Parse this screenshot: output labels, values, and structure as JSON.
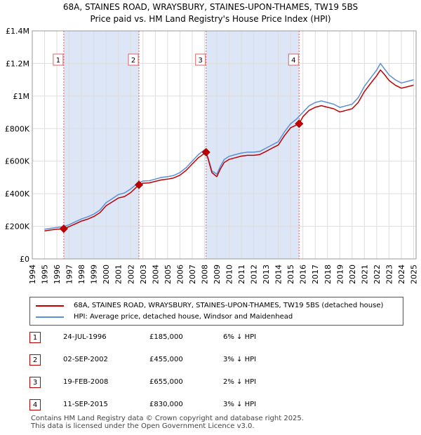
{
  "header": {
    "title": "68A, STAINES ROAD, WRAYSBURY, STAINES-UPON-THAMES, TW19 5BS",
    "subtitle": "Price paid vs. HM Land Registry's House Price Index (HPI)"
  },
  "colors": {
    "property": "#c00000",
    "hpi": "#5b8fd6",
    "shade": "#dce6f7",
    "vline": "#e06060",
    "grid": "#dddddd"
  },
  "chart_data": {
    "type": "line",
    "title": "68A, STAINES ROAD, WRAYSBURY, STAINES-UPON-THAMES, TW19 5BS",
    "subtitle": "Price paid vs. HM Land Registry's House Price Index (HPI)",
    "xlabel": "",
    "ylabel": "",
    "xlim": [
      1994,
      2025.2
    ],
    "ylim": [
      0,
      1400000
    ],
    "x_ticks": [
      1994,
      1995,
      1996,
      1997,
      1998,
      1999,
      2000,
      2001,
      2002,
      2003,
      2004,
      2005,
      2006,
      2007,
      2008,
      2009,
      2010,
      2011,
      2012,
      2013,
      2014,
      2015,
      2016,
      2017,
      2018,
      2019,
      2020,
      2021,
      2022,
      2023,
      2024,
      2025
    ],
    "y_ticks": [
      {
        "value": 0,
        "label": "£0"
      },
      {
        "value": 200000,
        "label": "£200K"
      },
      {
        "value": 400000,
        "label": "£400K"
      },
      {
        "value": 600000,
        "label": "£600K"
      },
      {
        "value": 800000,
        "label": "£800K"
      },
      {
        "value": 1000000,
        "label": "£1M"
      },
      {
        "value": 1200000,
        "label": "£1.2M"
      },
      {
        "value": 1400000,
        "label": "£1.4M"
      }
    ],
    "grid": true,
    "series": [
      {
        "name": "HPI: Average price, detached house, Windsor and Maidenhead",
        "x": [
          1995.0,
          1995.5,
          1996.0,
          1996.5,
          1997.0,
          1997.5,
          1998.0,
          1998.5,
          1999.0,
          1999.5,
          2000.0,
          2000.5,
          2001.0,
          2001.5,
          2002.0,
          2002.5,
          2003.0,
          2003.5,
          2004.0,
          2004.5,
          2005.0,
          2005.5,
          2006.0,
          2006.5,
          2007.0,
          2007.5,
          2008.0,
          2008.3,
          2008.6,
          2009.0,
          2009.3,
          2009.6,
          2010.0,
          2010.5,
          2011.0,
          2011.5,
          2012.0,
          2012.5,
          2013.0,
          2013.5,
          2014.0,
          2014.5,
          2015.0,
          2015.5,
          2016.0,
          2016.5,
          2017.0,
          2017.5,
          2018.0,
          2018.5,
          2019.0,
          2019.5,
          2020.0,
          2020.5,
          2021.0,
          2021.5,
          2022.0,
          2022.3,
          2022.6,
          2023.0,
          2023.5,
          2024.0,
          2024.5,
          2025.0
        ],
        "values": [
          182000,
          188000,
          193000,
          197000,
          210000,
          228000,
          245000,
          258000,
          275000,
          300000,
          345000,
          370000,
          395000,
          405000,
          430000,
          460000,
          478000,
          480000,
          490000,
          500000,
          505000,
          512000,
          530000,
          560000,
          600000,
          640000,
          670000,
          620000,
          540000,
          520000,
          570000,
          610000,
          630000,
          640000,
          650000,
          655000,
          655000,
          660000,
          680000,
          700000,
          720000,
          780000,
          830000,
          860000,
          900000,
          940000,
          960000,
          970000,
          960000,
          950000,
          930000,
          940000,
          950000,
          990000,
          1060000,
          1110000,
          1160000,
          1200000,
          1170000,
          1130000,
          1100000,
          1080000,
          1090000,
          1100000
        ]
      },
      {
        "name": "68A, STAINES ROAD, WRAYSBURY, STAINES-UPON-THAMES, TW19 5BS (detached house)",
        "x": [
          1995.0,
          1995.5,
          1996.0,
          1996.56,
          1997.0,
          1997.5,
          1998.0,
          1998.5,
          1999.0,
          1999.5,
          2000.0,
          2000.5,
          2001.0,
          2001.5,
          2002.0,
          2002.67,
          2003.0,
          2003.5,
          2004.0,
          2004.5,
          2005.0,
          2005.5,
          2006.0,
          2006.5,
          2007.0,
          2007.5,
          2008.13,
          2008.3,
          2008.6,
          2009.0,
          2009.3,
          2009.6,
          2010.0,
          2010.5,
          2011.0,
          2011.5,
          2012.0,
          2012.5,
          2013.0,
          2013.5,
          2014.0,
          2014.5,
          2015.0,
          2015.69,
          2016.0,
          2016.5,
          2017.0,
          2017.5,
          2018.0,
          2018.5,
          2019.0,
          2019.5,
          2020.0,
          2020.5,
          2021.0,
          2021.5,
          2022.0,
          2022.3,
          2022.6,
          2023.0,
          2023.5,
          2024.0,
          2024.5,
          2025.0
        ],
        "values": [
          172000,
          178000,
          182000,
          185000,
          198000,
          215000,
          232000,
          244000,
          260000,
          284000,
          326000,
          350000,
          374000,
          383000,
          407000,
          455000,
          465000,
          467000,
          476000,
          485000,
          490000,
          497000,
          514000,
          543000,
          582000,
          621000,
          655000,
          612000,
          530000,
          505000,
          553000,
          592000,
          611000,
          621000,
          631000,
          636000,
          636000,
          641000,
          660000,
          680000,
          699000,
          757000,
          805000,
          830000,
          873000,
          912000,
          931000,
          941000,
          931000,
          922000,
          902000,
          912000,
          922000,
          961000,
          1028000,
          1077000,
          1125000,
          1160000,
          1135000,
          1096000,
          1067000,
          1048000,
          1057000,
          1067000
        ]
      }
    ],
    "sales": [
      {
        "label": "1",
        "x": 1996.56,
        "value": 185000
      },
      {
        "label": "2",
        "x": 2002.67,
        "value": 455000
      },
      {
        "label": "3",
        "x": 2008.13,
        "value": 655000
      },
      {
        "label": "4",
        "x": 2015.69,
        "value": 830000
      }
    ],
    "shaded_spans": [
      [
        1996.56,
        2002.67
      ],
      [
        2008.13,
        2015.69
      ]
    ]
  },
  "legend": {
    "property_label": "68A, STAINES ROAD, WRAYSBURY, STAINES-UPON-THAMES, TW19 5BS (detached house)",
    "hpi_label": "HPI: Average price, detached house, Windsor and Maidenhead"
  },
  "transactions": [
    {
      "num": "1",
      "date": "24-JUL-1996",
      "price": "£185,000",
      "hpi": "6% ↓ HPI"
    },
    {
      "num": "2",
      "date": "02-SEP-2002",
      "price": "£455,000",
      "hpi": "3% ↓ HPI"
    },
    {
      "num": "3",
      "date": "19-FEB-2008",
      "price": "£655,000",
      "hpi": "2% ↓ HPI"
    },
    {
      "num": "4",
      "date": "11-SEP-2015",
      "price": "£830,000",
      "hpi": "3% ↓ HPI"
    }
  ],
  "footer": {
    "line1": "Contains HM Land Registry data © Crown copyright and database right 2025.",
    "line2": "This data is licensed under the Open Government Licence v3.0."
  }
}
